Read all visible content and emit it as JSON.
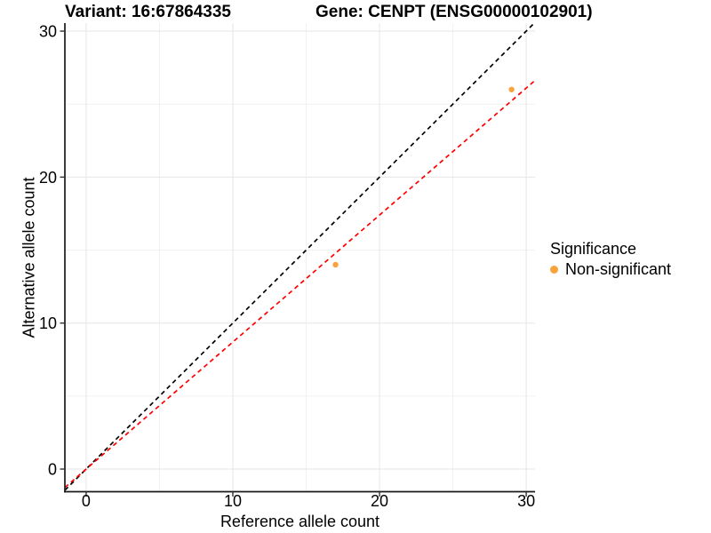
{
  "chart_data": {
    "type": "scatter",
    "title_left": "Variant: 16:67864335",
    "title_right": "Gene: CENPT (ENSG00000102901)",
    "xlabel": "Reference allele count",
    "ylabel": "Alternative allele count",
    "xlim": [
      -1.45,
      30.6
    ],
    "ylim": [
      -1.55,
      30.55
    ],
    "xticks": [
      0,
      10,
      20,
      30
    ],
    "yticks": [
      0,
      10,
      20,
      30
    ],
    "xticks_minor": [
      5,
      15,
      25
    ],
    "yticks_minor": [
      5,
      15,
      25
    ],
    "grid": "major+minor",
    "legend_position": "right",
    "points": [
      {
        "x": 17,
        "y": 14,
        "series": "Non-significant"
      },
      {
        "x": 29,
        "y": 26,
        "series": "Non-significant"
      }
    ],
    "point_color": "#F9A33C",
    "lines": [
      {
        "name": "identity-line",
        "slope": 1,
        "intercept": 0,
        "color": "#000000",
        "style": "dashed"
      },
      {
        "name": "expected-ratio-line",
        "slope": 0.87,
        "intercept": 0,
        "color": "#FF0000",
        "style": "dashed"
      }
    ],
    "legend": {
      "title": "Significance",
      "entries": [
        {
          "label": "Non-significant",
          "color": "#F9A33C"
        }
      ]
    }
  },
  "colors": {
    "background": "#FFFFFF",
    "text": "#000000",
    "axis_line": "#1A1A1A",
    "tick": "#333333",
    "grid_major": "#E6E6E6",
    "grid_minor": "#F1F1F1"
  }
}
